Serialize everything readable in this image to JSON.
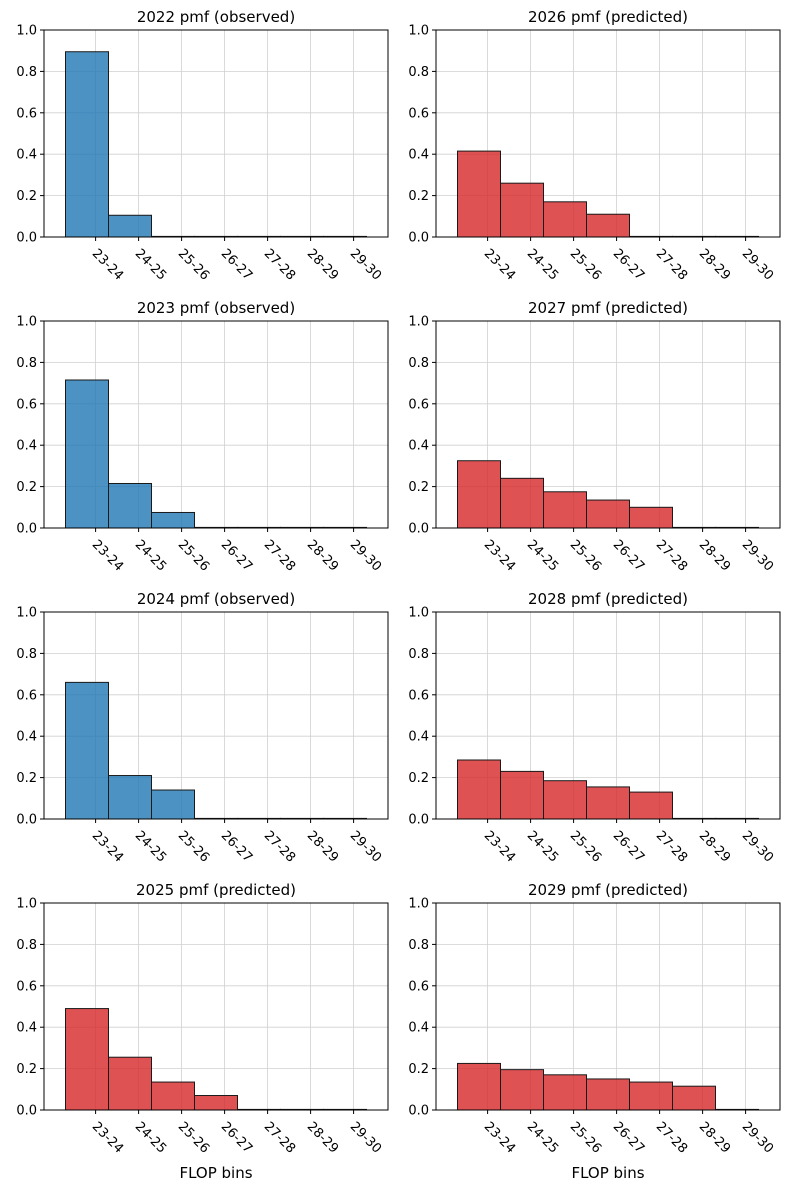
{
  "colors": {
    "observed": "#1f77b4",
    "predicted": "#d62728"
  },
  "chart_data": [
    {
      "type": "bar",
      "title": "2022 pmf (observed)",
      "kind": "observed",
      "categories": [
        "23-24",
        "24-25",
        "25-26",
        "26-27",
        "27-28",
        "28-29",
        "29-30"
      ],
      "values": [
        0.895,
        0.105,
        0.0,
        0.0,
        0.0,
        0.0,
        0.0
      ],
      "ylim": [
        0,
        1
      ],
      "yticks": [
        "0.0",
        "0.2",
        "0.4",
        "0.6",
        "0.8",
        "1.0"
      ],
      "xlabel": "",
      "grid": true
    },
    {
      "type": "bar",
      "title": "2026 pmf (predicted)",
      "kind": "predicted",
      "categories": [
        "23-24",
        "24-25",
        "25-26",
        "26-27",
        "27-28",
        "28-29",
        "29-30"
      ],
      "values": [
        0.415,
        0.26,
        0.17,
        0.11,
        0.0,
        0.0,
        0.0
      ],
      "ylim": [
        0,
        1
      ],
      "yticks": [
        "0.0",
        "0.2",
        "0.4",
        "0.6",
        "0.8",
        "1.0"
      ],
      "xlabel": "",
      "grid": true
    },
    {
      "type": "bar",
      "title": "2023 pmf (observed)",
      "kind": "observed",
      "categories": [
        "23-24",
        "24-25",
        "25-26",
        "26-27",
        "27-28",
        "28-29",
        "29-30"
      ],
      "values": [
        0.715,
        0.215,
        0.075,
        0.0,
        0.0,
        0.0,
        0.0
      ],
      "ylim": [
        0,
        1
      ],
      "yticks": [
        "0.0",
        "0.2",
        "0.4",
        "0.6",
        "0.8",
        "1.0"
      ],
      "xlabel": "",
      "grid": true
    },
    {
      "type": "bar",
      "title": "2027 pmf (predicted)",
      "kind": "predicted",
      "categories": [
        "23-24",
        "24-25",
        "25-26",
        "26-27",
        "27-28",
        "28-29",
        "29-30"
      ],
      "values": [
        0.325,
        0.24,
        0.175,
        0.135,
        0.1,
        0.0,
        0.0
      ],
      "ylim": [
        0,
        1
      ],
      "yticks": [
        "0.0",
        "0.2",
        "0.4",
        "0.6",
        "0.8",
        "1.0"
      ],
      "xlabel": "",
      "grid": true
    },
    {
      "type": "bar",
      "title": "2024 pmf (observed)",
      "kind": "observed",
      "categories": [
        "23-24",
        "24-25",
        "25-26",
        "26-27",
        "27-28",
        "28-29",
        "29-30"
      ],
      "values": [
        0.66,
        0.21,
        0.14,
        0.0,
        0.0,
        0.0,
        0.0
      ],
      "ylim": [
        0,
        1
      ],
      "yticks": [
        "0.0",
        "0.2",
        "0.4",
        "0.6",
        "0.8",
        "1.0"
      ],
      "xlabel": "",
      "grid": true
    },
    {
      "type": "bar",
      "title": "2028 pmf (predicted)",
      "kind": "predicted",
      "categories": [
        "23-24",
        "24-25",
        "25-26",
        "26-27",
        "27-28",
        "28-29",
        "29-30"
      ],
      "values": [
        0.285,
        0.23,
        0.185,
        0.155,
        0.13,
        0.0,
        0.0
      ],
      "ylim": [
        0,
        1
      ],
      "yticks": [
        "0.0",
        "0.2",
        "0.4",
        "0.6",
        "0.8",
        "1.0"
      ],
      "xlabel": "",
      "grid": true
    },
    {
      "type": "bar",
      "title": "2025 pmf (predicted)",
      "kind": "predicted",
      "categories": [
        "23-24",
        "24-25",
        "25-26",
        "26-27",
        "27-28",
        "28-29",
        "29-30"
      ],
      "values": [
        0.49,
        0.255,
        0.135,
        0.07,
        0.0,
        0.0,
        0.0
      ],
      "ylim": [
        0,
        1
      ],
      "yticks": [
        "0.0",
        "0.2",
        "0.4",
        "0.6",
        "0.8",
        "1.0"
      ],
      "xlabel": "FLOP bins",
      "grid": true
    },
    {
      "type": "bar",
      "title": "2029 pmf (predicted)",
      "kind": "predicted",
      "categories": [
        "23-24",
        "24-25",
        "25-26",
        "26-27",
        "27-28",
        "28-29",
        "29-30"
      ],
      "values": [
        0.225,
        0.195,
        0.17,
        0.15,
        0.135,
        0.115,
        0.0
      ],
      "ylim": [
        0,
        1
      ],
      "yticks": [
        "0.0",
        "0.2",
        "0.4",
        "0.6",
        "0.8",
        "1.0"
      ],
      "xlabel": "FLOP bins",
      "grid": true
    }
  ]
}
